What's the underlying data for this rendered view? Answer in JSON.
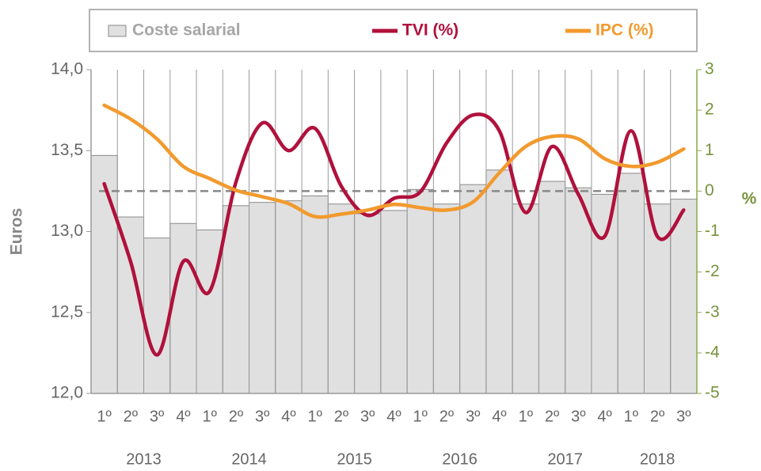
{
  "chart_data": {
    "type": "bar-line",
    "categories": [
      "1º",
      "2º",
      "3º",
      "4º",
      "1º",
      "2º",
      "3º",
      "4º",
      "1º",
      "2º",
      "3º",
      "4º",
      "1º",
      "2º",
      "3º",
      "4º",
      "1º",
      "2º",
      "3º",
      "4º",
      "1º",
      "2º",
      "3º"
    ],
    "years": [
      "2013",
      "2014",
      "2015",
      "2016",
      "2017",
      "2018"
    ],
    "ylabel": "Euros",
    "y2label": "%",
    "ylim": [
      12.0,
      14.0
    ],
    "yticks": [
      {
        "value": 12.0,
        "label": "12,0"
      },
      {
        "value": 12.5,
        "label": "12,5"
      },
      {
        "value": 13.0,
        "label": "13,0"
      },
      {
        "value": 13.5,
        "label": "13,5"
      },
      {
        "value": 14.0,
        "label": "14,0"
      }
    ],
    "y2lim": [
      -5,
      3
    ],
    "y2ticks": [
      -5,
      -4,
      -3,
      -2,
      -1,
      0,
      1,
      2,
      3
    ],
    "reference_line": 0,
    "grid": true,
    "series": [
      {
        "name": "Coste salarial",
        "type": "bar",
        "color": "#e0e0e0",
        "axis": "y",
        "values": [
          13.47,
          13.09,
          12.96,
          13.05,
          13.01,
          13.16,
          13.18,
          13.19,
          13.22,
          13.17,
          13.11,
          13.13,
          13.26,
          13.17,
          13.29,
          13.38,
          13.17,
          13.31,
          13.27,
          13.23,
          13.36,
          13.17,
          13.2
        ]
      },
      {
        "name": "TVI (%)",
        "type": "line",
        "color": "#b0113c",
        "axis": "y2",
        "values": [
          0.18,
          -1.74,
          -4.05,
          -1.74,
          -2.48,
          0.22,
          1.68,
          1.0,
          1.55,
          0.12,
          -0.6,
          -0.18,
          -0.02,
          1.19,
          1.88,
          1.49,
          -0.53,
          1.1,
          -0.08,
          -1.12,
          1.49,
          -1.12,
          -0.47
        ]
      },
      {
        "name": "IPC (%)",
        "type": "line",
        "color": "#f29a2e",
        "axis": "y2",
        "values": [
          2.12,
          1.78,
          1.29,
          0.61,
          0.31,
          0.02,
          -0.14,
          -0.31,
          -0.63,
          -0.57,
          -0.47,
          -0.33,
          -0.41,
          -0.47,
          -0.27,
          0.45,
          1.1,
          1.35,
          1.29,
          0.8,
          0.61,
          0.71,
          1.04
        ]
      }
    ]
  }
}
